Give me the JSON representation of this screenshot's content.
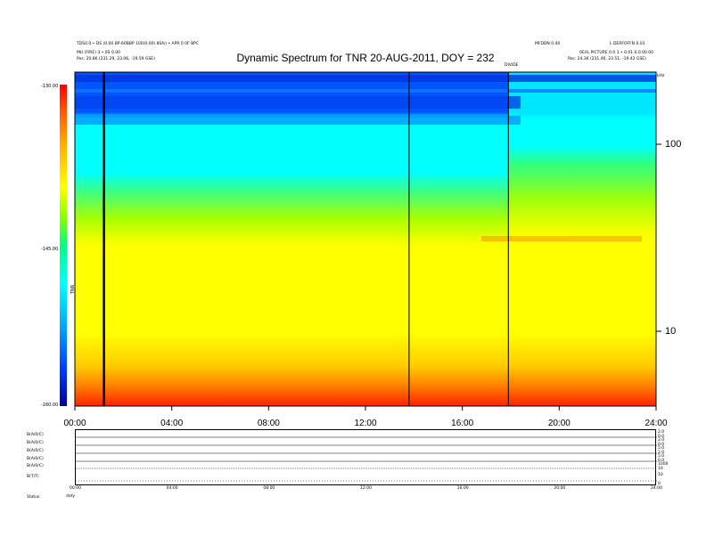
{
  "header": {
    "left_line1": "TDS0.0 • DS (0.00 BP-60BBP 100(0.00) 8Sfs) • APR 0 0F BPC",
    "left_line2": "MU (FIRE) 3 • 0S 0.00",
    "left_line3": "Pos: 20.86 (231.29, 23.06, -19.59 GSE)",
    "right_line1": "MFDDN 0.40",
    "right_line2": "L DERFOFFN 0.01",
    "right_line3": "0E/IL PICTURE 0.0 1 • 0.01.0.0.00.00",
    "right_line4": "Pos: 24.36 (231.46, 23.51, -19.42 GSE)",
    "marker": "DIVIDE",
    "khz": "kHz"
  },
  "chart_data": {
    "type": "heatmap",
    "title": "Dynamic Spectrum for TNR 20-AUG-2011, DOY = 232",
    "x_ticks": [
      "00:00",
      "04:00",
      "08:00",
      "12:00",
      "16:00",
      "20:00",
      "24:00"
    ],
    "y_scale": "log",
    "y_ticks": [
      "100",
      "10"
    ],
    "colorbar": {
      "label": "TNR",
      "ticks": [
        "-130.00",
        "-145.00",
        "-160.00"
      ],
      "range": [
        -160,
        -130
      ]
    },
    "vertical_lines_hours": [
      1.2,
      13.8,
      17.9
    ],
    "colors": {
      "low": "#ff0000",
      "mid": "#ffff00",
      "high": "#00ffff",
      "top": "#0033ff"
    }
  },
  "panel": {
    "left_labels": [
      "B(A/0/C)",
      "B(A/0/C)",
      "B(A/0/C)",
      "B(A/0/C)",
      "B(A/0/C)",
      "B(T/T)",
      "Status"
    ],
    "right_labels": [
      "2.0",
      "0.0",
      "2.0",
      "0.0",
      "5.0",
      "2.0",
      "5.0",
      "0.0",
      "1000",
      "10",
      "10",
      "0"
    ],
    "x_ticks": [
      "00:00",
      "04:00",
      "08:00",
      "12:00",
      "16:00",
      "20:00",
      "24:00"
    ],
    "status_value": "doty"
  }
}
